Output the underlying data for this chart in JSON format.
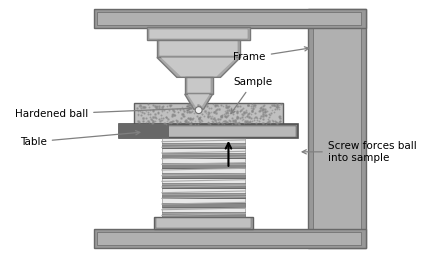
{
  "labels": {
    "hardened_ball": "Hardened ball",
    "frame": "Frame",
    "sample": "Sample",
    "table": "Table",
    "screw_forces": "Screw forces ball\ninto sample"
  },
  "colors": {
    "frame_light": "#b0b0b0",
    "frame_mid": "#989898",
    "frame_dark": "#686868",
    "indenter_light": "#c8c8c8",
    "indenter_mid": "#a8a8a8",
    "indenter_dark": "#787878",
    "sample_bg": "#c0c0c0",
    "table_light": "#c0c0c0",
    "table_dark": "#707070",
    "spring_light": "#e8e8e8",
    "spring_dark": "#888888",
    "background": "#ffffff",
    "text": "#000000",
    "arrow_color": "#808080"
  },
  "figsize": [
    4.4,
    2.57
  ],
  "dpi": 100
}
